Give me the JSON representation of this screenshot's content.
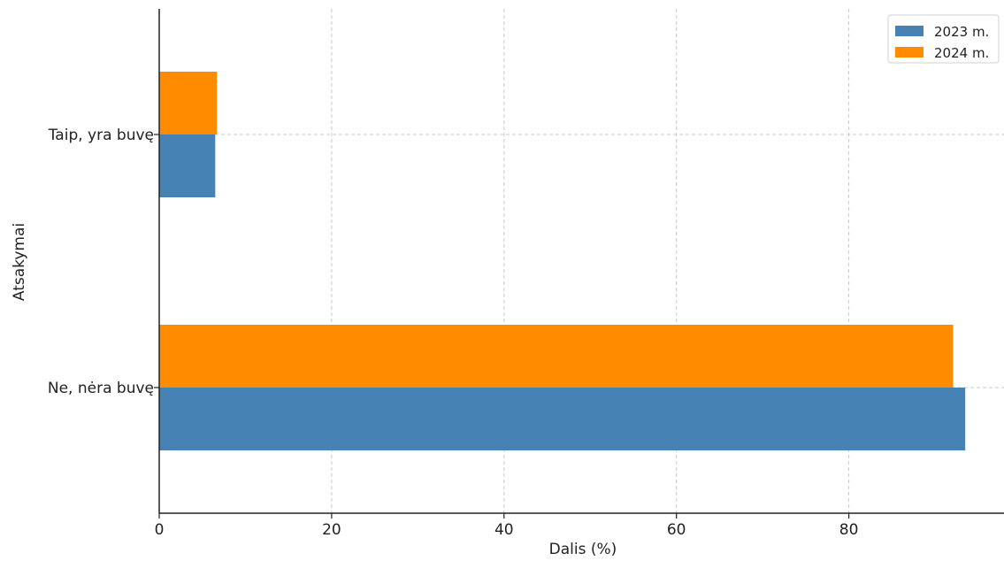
{
  "chart_data": {
    "type": "bar",
    "orientation": "horizontal",
    "title": "",
    "xlabel": "Dalis (%)",
    "ylabel": "Atsakymai",
    "categories": [
      "Ne, nėra buvę",
      "Taip, yra buvę"
    ],
    "series": [
      {
        "name": "2023 m.",
        "values": [
          93.5,
          6.5
        ],
        "color": "#4682b4"
      },
      {
        "name": "2024 m.",
        "values": [
          92.1,
          6.7
        ],
        "color": "#ff8c00"
      }
    ],
    "xlim": [
      0,
      98
    ],
    "xticks": [
      0,
      20,
      40,
      60,
      80
    ],
    "grid": true,
    "legend_position": "top-right"
  }
}
